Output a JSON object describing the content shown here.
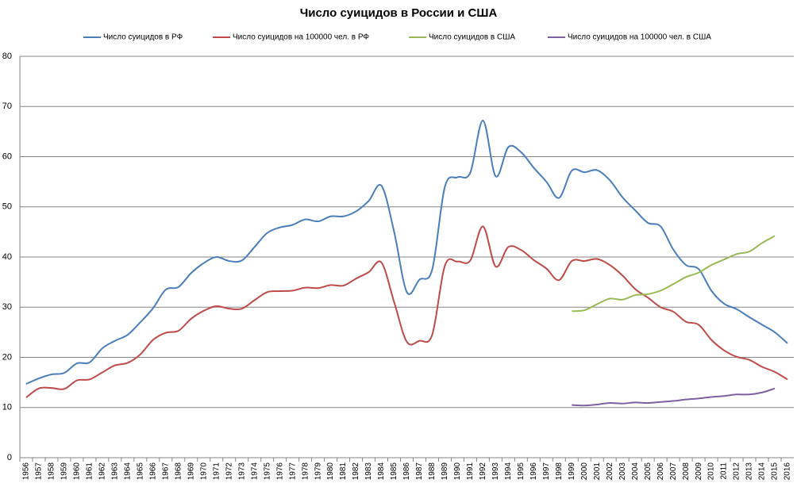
{
  "chart_data": {
    "type": "line",
    "title": "Число суицидов в России и США",
    "categories": [
      "1956",
      "1957",
      "1958",
      "1959",
      "1960",
      "1961",
      "1962",
      "1963",
      "1964",
      "1965",
      "1966",
      "1967",
      "1968",
      "1969",
      "1970",
      "1971",
      "1972",
      "1973",
      "1974",
      "1975",
      "1976",
      "1977",
      "1978",
      "1979",
      "1980",
      "1981",
      "1982",
      "1983",
      "1984",
      "1985",
      "1986",
      "1987",
      "1988",
      "1989",
      "1990",
      "1991",
      "1992",
      "1993",
      "1994",
      "1995",
      "1996",
      "1997",
      "1998",
      "1999",
      "2000",
      "2001",
      "2002",
      "2003",
      "2004",
      "2005",
      "2006",
      "2007",
      "2008",
      "2009",
      "2010",
      "2011",
      "2012",
      "2013",
      "2014",
      "2015",
      "2016"
    ],
    "series": [
      {
        "name": "Число суицидов в РФ",
        "color": "#4a7ebb",
        "values": [
          14.7,
          15.8,
          16.6,
          16.9,
          18.8,
          19.0,
          21.8,
          23.3,
          24.5,
          27.0,
          29.8,
          33.5,
          34.0,
          36.8,
          38.8,
          40.0,
          39.2,
          39.3,
          42.0,
          44.8,
          45.9,
          46.4,
          47.5,
          47.1,
          48.1,
          48.1,
          49.1,
          51.2,
          54.2,
          45.0,
          33.0,
          35.5,
          37.5,
          54.0,
          55.9,
          56.8,
          67.2,
          56.1,
          61.9,
          60.9,
          57.8,
          55.0,
          51.8,
          57.2,
          56.9,
          57.3,
          55.3,
          51.9,
          49.3,
          46.8,
          46.1,
          41.5,
          38.4,
          37.6,
          33.3,
          30.7,
          29.6,
          28.0,
          26.5,
          25.0,
          22.8
        ]
      },
      {
        "name": "Число суицидов на 100000 чел. в РФ",
        "color": "#be4b48",
        "values": [
          12.0,
          13.8,
          13.9,
          13.7,
          15.4,
          15.6,
          17.0,
          18.4,
          18.9,
          20.6,
          23.5,
          24.9,
          25.3,
          27.7,
          29.3,
          30.2,
          29.7,
          29.7,
          31.4,
          33.0,
          33.2,
          33.3,
          33.9,
          33.8,
          34.4,
          34.3,
          35.7,
          37.0,
          38.9,
          31.0,
          23.1,
          23.3,
          24.5,
          38.3,
          39.1,
          39.3,
          46.1,
          38.1,
          42.0,
          41.4,
          39.4,
          37.7,
          35.4,
          39.2,
          39.2,
          39.6,
          38.4,
          36.3,
          33.6,
          31.9,
          30.0,
          29.1,
          27.1,
          26.5,
          23.5,
          21.4,
          20.1,
          19.5,
          18.1,
          17.1,
          15.6
        ]
      },
      {
        "name": "Число суицидов в США",
        "color": "#98b954",
        "values": [
          null,
          null,
          null,
          null,
          null,
          null,
          null,
          null,
          null,
          null,
          null,
          null,
          null,
          null,
          null,
          null,
          null,
          null,
          null,
          null,
          null,
          null,
          null,
          null,
          null,
          null,
          null,
          null,
          null,
          null,
          null,
          null,
          null,
          null,
          null,
          null,
          null,
          null,
          null,
          null,
          null,
          null,
          null,
          29.2,
          29.4,
          30.6,
          31.7,
          31.5,
          32.4,
          32.6,
          33.3,
          34.6,
          36.0,
          36.9,
          38.4,
          39.5,
          40.6,
          41.1,
          42.8,
          44.2,
          null
        ]
      },
      {
        "name": "Число суицидов на 100000 чел. в США",
        "color": "#7d60a0",
        "values": [
          null,
          null,
          null,
          null,
          null,
          null,
          null,
          null,
          null,
          null,
          null,
          null,
          null,
          null,
          null,
          null,
          null,
          null,
          null,
          null,
          null,
          null,
          null,
          null,
          null,
          null,
          null,
          null,
          null,
          null,
          null,
          null,
          null,
          null,
          null,
          null,
          null,
          null,
          null,
          null,
          null,
          null,
          null,
          10.5,
          10.4,
          10.6,
          10.9,
          10.8,
          11.0,
          10.9,
          11.1,
          11.3,
          11.6,
          11.8,
          12.1,
          12.3,
          12.6,
          12.6,
          13.0,
          13.8,
          null
        ]
      }
    ],
    "ylim": [
      0,
      80
    ],
    "yticks": [
      0,
      10,
      20,
      30,
      40,
      50,
      60,
      70,
      80
    ],
    "grid": true,
    "legend": "top"
  }
}
